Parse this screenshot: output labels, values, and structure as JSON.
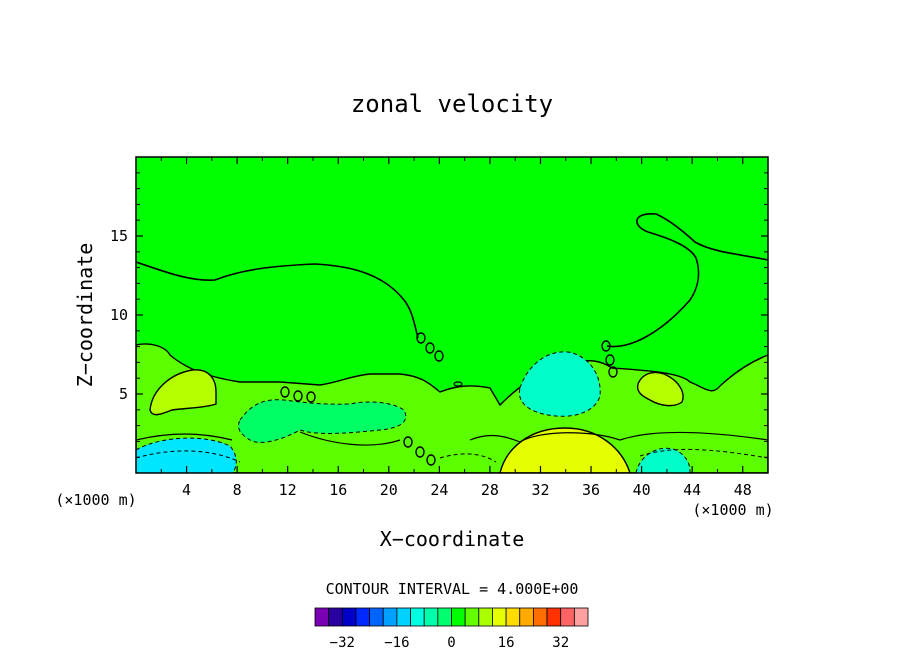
{
  "chart_data": {
    "type": "contour",
    "title": "zonal velocity",
    "xlabel": "X−coordinate",
    "ylabel": "Z−coordinate",
    "x_units_left": "(×1000 m)",
    "x_units_right": "(×1000 m)",
    "xlim": [
      0,
      50
    ],
    "ylim": [
      0,
      20
    ],
    "x_ticks": [
      4,
      8,
      12,
      16,
      20,
      24,
      28,
      32,
      36,
      40,
      44,
      48
    ],
    "y_ticks": [
      5,
      10,
      15
    ],
    "contour_interval_text": "CONTOUR INTERVAL = 4.000E+00",
    "contour_interval": 4,
    "colorbar": {
      "levels": [
        -36,
        -32,
        -28,
        -24,
        -20,
        -16,
        -12,
        -8,
        -4,
        0,
        4,
        8,
        12,
        16,
        20,
        24,
        28,
        32,
        36
      ],
      "tick_labels": [
        "−32",
        "−16",
        "0",
        "16",
        "32"
      ],
      "tick_values": [
        -32,
        -16,
        0,
        16,
        32
      ],
      "colors": [
        "#7a00b4",
        "#2a00a0",
        "#0000c8",
        "#0028ff",
        "#0064ff",
        "#00a0ff",
        "#00d2ff",
        "#00ffe1",
        "#00ffaa",
        "#00ff6e",
        "#00ff00",
        "#64ff00",
        "#aaff00",
        "#e6ff00",
        "#ffdc00",
        "#ffaa00",
        "#ff6e00",
        "#ff3200",
        "#ff6464",
        "#ffa0a0"
      ]
    },
    "regions": [
      {
        "name": "background",
        "value": 2,
        "color": "#00ff00"
      },
      {
        "name": "lower-layer",
        "value": 6,
        "color": "#5cff00"
      },
      {
        "name": "left-jet-core",
        "value": 10,
        "color": "#b4ff00"
      },
      {
        "name": "right-jet-core",
        "value": 10,
        "color": "#b4ff00"
      },
      {
        "name": "mid-negative-tongue",
        "value": -2,
        "color": "#00ff64"
      },
      {
        "name": "center-negative-cell",
        "value": -6,
        "color": "#00ffc8"
      },
      {
        "name": "bottom-left-negative",
        "value": -10,
        "color": "#00e6ff"
      },
      {
        "name": "bottom-center-positive",
        "value": 14,
        "color": "#e6ff00"
      },
      {
        "name": "bottom-right-negative",
        "value": -6,
        "color": "#00ffc8"
      }
    ]
  }
}
